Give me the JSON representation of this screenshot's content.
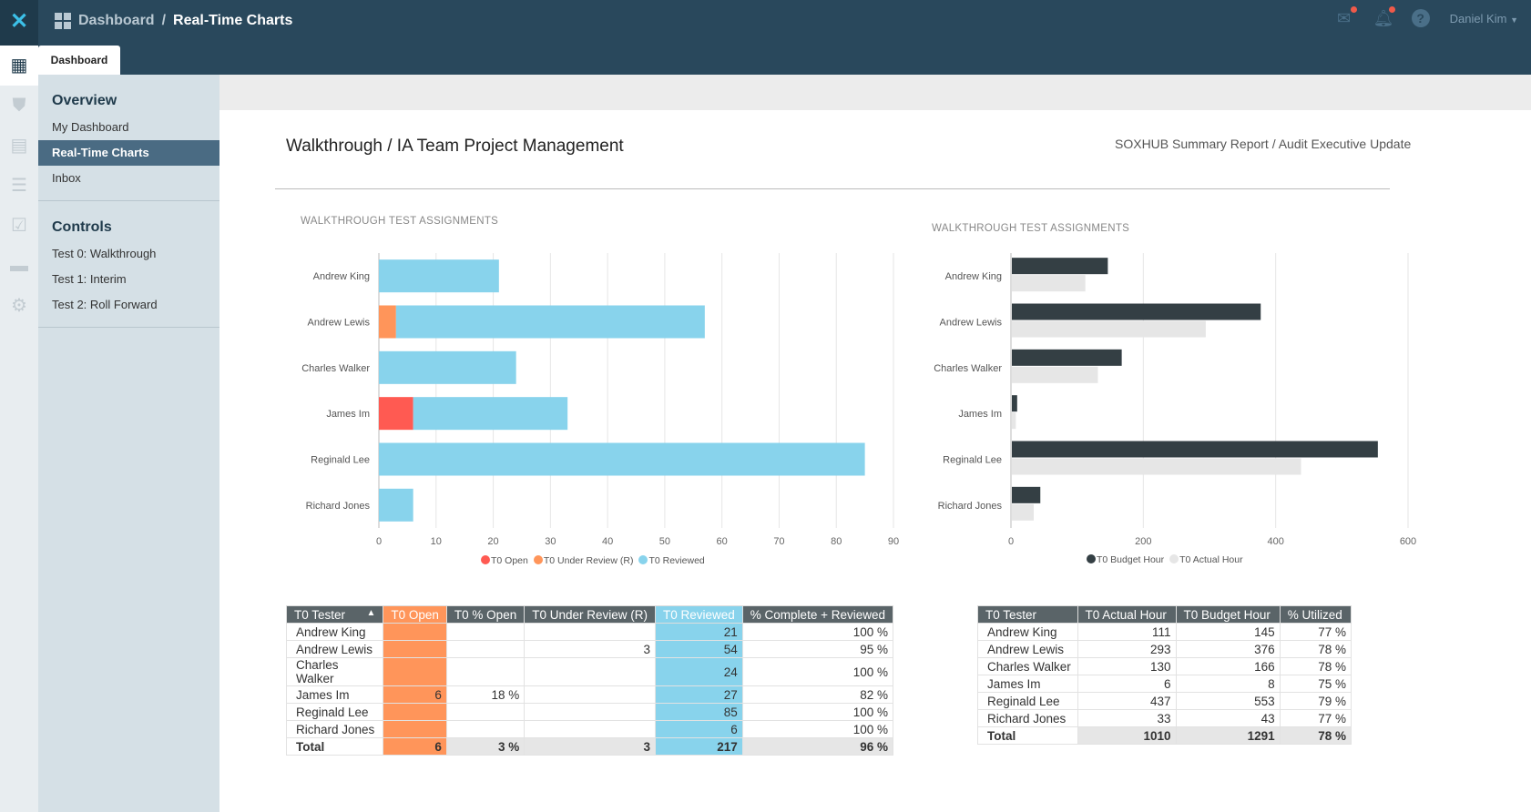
{
  "header": {
    "breadcrumb_root": "Dashboard",
    "breadcrumb_current": "Real-Time Charts",
    "tab": "Dashboard",
    "user": "Daniel Kim",
    "icons": [
      "mail-icon",
      "bell-icon",
      "help-icon"
    ]
  },
  "sidebar": {
    "overview_title": "Overview",
    "overview_items": [
      "My Dashboard",
      "Real-Time Charts",
      "Inbox"
    ],
    "active": "Real-Time Charts",
    "controls_title": "Controls",
    "controls_items": [
      "Test 0: Walkthrough",
      "Test 1: Interim",
      "Test 2: Roll Forward"
    ]
  },
  "page": {
    "title": "Walkthrough / IA Team Project Management",
    "subtitle": "SOXHUB Summary Report / Audit Executive Update"
  },
  "chart_data": [
    {
      "type": "bar",
      "orientation": "horizontal",
      "stacked": true,
      "title": "WALKTHROUGH TEST ASSIGNMENTS",
      "categories": [
        "Andrew King",
        "Andrew Lewis",
        "Charles Walker",
        "James Im",
        "Reginald Lee",
        "Richard Jones"
      ],
      "series": [
        {
          "name": "T0 Open",
          "color": "#ff5a52",
          "values": [
            0,
            0,
            0,
            6,
            0,
            0
          ]
        },
        {
          "name": "T0 Under Review (R)",
          "color": "#ff955a",
          "values": [
            0,
            3,
            0,
            0,
            0,
            0
          ]
        },
        {
          "name": "T0 Reviewed",
          "color": "#88d3ec",
          "values": [
            21,
            54,
            24,
            27,
            85,
            6
          ]
        }
      ],
      "xlim": [
        0,
        90
      ],
      "xticks": [
        0,
        10,
        20,
        30,
        40,
        50,
        60,
        70,
        80,
        90
      ],
      "grid": true,
      "legend": "bottom"
    },
    {
      "type": "bar",
      "orientation": "horizontal",
      "stacked": false,
      "title": "WALKTHROUGH TEST ASSIGNMENTS",
      "categories": [
        "Andrew King",
        "Andrew Lewis",
        "Charles Walker",
        "James Im",
        "Reginald Lee",
        "Richard Jones"
      ],
      "series": [
        {
          "name": "T0 Budget Hour",
          "color": "#343f44",
          "values": [
            145,
            376,
            166,
            8,
            553,
            43
          ]
        },
        {
          "name": "T0 Actual Hour",
          "color": "#e6e6e6",
          "values": [
            111,
            293,
            130,
            6,
            437,
            33
          ]
        }
      ],
      "xlim": [
        0,
        600
      ],
      "xticks": [
        0,
        200,
        400,
        600
      ],
      "grid": true,
      "legend": "bottom"
    }
  ],
  "table1": {
    "headers": [
      "T0 Tester",
      "T0 Open",
      "T0 % Open",
      "T0 Under Review (R)",
      "T0 Reviewed",
      "% Complete + Reviewed"
    ],
    "rows": [
      [
        "Andrew King",
        "",
        "",
        "",
        "21",
        "100 %"
      ],
      [
        "Andrew Lewis",
        "",
        "",
        "3",
        "54",
        "95 %"
      ],
      [
        "Charles Walker",
        "",
        "",
        "",
        "24",
        "100 %"
      ],
      [
        "James Im",
        "6",
        "18 %",
        "",
        "27",
        "82 %"
      ],
      [
        "Reginald Lee",
        "",
        "",
        "",
        "85",
        "100 %"
      ],
      [
        "Richard Jones",
        "",
        "",
        "",
        "6",
        "100 %"
      ]
    ],
    "total": [
      "Total",
      "6",
      "3 %",
      "3",
      "217",
      "96 %"
    ]
  },
  "table2": {
    "headers": [
      "T0 Tester",
      "T0 Actual Hour",
      "T0 Budget Hour",
      "% Utilized"
    ],
    "rows": [
      [
        "Andrew King",
        "111",
        "145",
        "77 %"
      ],
      [
        "Andrew Lewis",
        "293",
        "376",
        "78 %"
      ],
      [
        "Charles Walker",
        "130",
        "166",
        "78 %"
      ],
      [
        "James Im",
        "6",
        "8",
        "75 %"
      ],
      [
        "Reginald Lee",
        "437",
        "553",
        "79 %"
      ],
      [
        "Richard Jones",
        "33",
        "43",
        "77 %"
      ]
    ],
    "total": [
      "Total",
      "1010",
      "1291",
      "78 %"
    ]
  }
}
